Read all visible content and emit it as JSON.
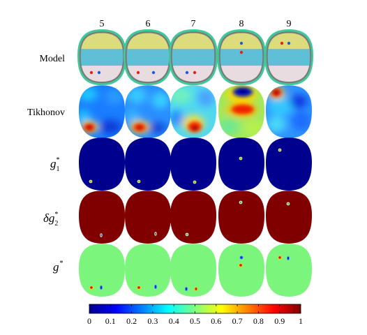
{
  "figure": {
    "columns": [
      "5",
      "6",
      "7",
      "8",
      "9"
    ],
    "rows": {
      "model": "Model",
      "tikhonov": "Tikhonov",
      "g1": {
        "base": "g",
        "sub": "1",
        "sup": "*"
      },
      "dg2": {
        "prefix": "δ",
        "base": "g",
        "sub": "2",
        "sup": "*"
      },
      "g": {
        "base": "g",
        "sup": "*"
      }
    }
  },
  "colorbar": {
    "colormap": "jet",
    "range": [
      0,
      1
    ],
    "ticks": [
      "0",
      "0.1",
      "0.2",
      "0.3",
      "0.4",
      "0.5",
      "0.6",
      "0.7",
      "0.8",
      "0.9",
      "1"
    ]
  },
  "colors": {
    "scalp": "#3ec99a",
    "skull": "#7a7a7a",
    "model_top": "#dcdc7e",
    "model_mid": "#5fbfd6",
    "model_bottom": "#e8dce0",
    "dot_red": "#e8211b",
    "dot_blue": "#1f5fd6",
    "low": "#00008f",
    "high": "#800000",
    "mid": "#7cf57c"
  }
}
